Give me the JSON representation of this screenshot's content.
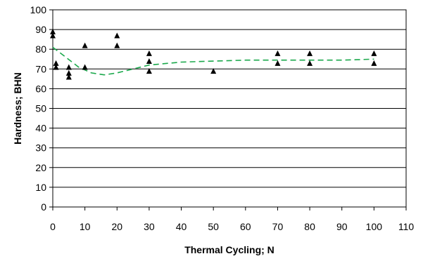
{
  "chart_data": {
    "type": "scatter",
    "xlabel": "Thermal Cycling; N",
    "ylabel": "Hardness; BHN",
    "xlim": [
      0,
      110
    ],
    "ylim": [
      0,
      100
    ],
    "x_ticks": [
      0,
      10,
      20,
      30,
      40,
      50,
      60,
      70,
      80,
      90,
      100,
      110
    ],
    "y_ticks": [
      0,
      10,
      20,
      30,
      40,
      50,
      60,
      70,
      80,
      90,
      100
    ],
    "grid": "horizontal",
    "points": [
      {
        "x": 0,
        "y": 89
      },
      {
        "x": 0,
        "y": 87
      },
      {
        "x": 1,
        "y": 73
      },
      {
        "x": 1,
        "y": 71
      },
      {
        "x": 5,
        "y": 71
      },
      {
        "x": 5,
        "y": 68
      },
      {
        "x": 5,
        "y": 66
      },
      {
        "x": 10,
        "y": 82
      },
      {
        "x": 10,
        "y": 71
      },
      {
        "x": 20,
        "y": 87
      },
      {
        "x": 20,
        "y": 82
      },
      {
        "x": 30,
        "y": 78
      },
      {
        "x": 30,
        "y": 74
      },
      {
        "x": 30,
        "y": 69
      },
      {
        "x": 50,
        "y": 69
      },
      {
        "x": 70,
        "y": 78
      },
      {
        "x": 70,
        "y": 73
      },
      {
        "x": 80,
        "y": 78
      },
      {
        "x": 80,
        "y": 73
      },
      {
        "x": 100,
        "y": 78
      },
      {
        "x": 100,
        "y": 73
      }
    ],
    "trend": {
      "style": "dashed",
      "color": "#1aa84b",
      "points": [
        {
          "x": 0,
          "y": 81
        },
        {
          "x": 4,
          "y": 76
        },
        {
          "x": 8,
          "y": 71
        },
        {
          "x": 12,
          "y": 68
        },
        {
          "x": 16,
          "y": 67
        },
        {
          "x": 20,
          "y": 68
        },
        {
          "x": 25,
          "y": 70
        },
        {
          "x": 30,
          "y": 72
        },
        {
          "x": 40,
          "y": 73.5
        },
        {
          "x": 50,
          "y": 74
        },
        {
          "x": 60,
          "y": 74.5
        },
        {
          "x": 70,
          "y": 74.5
        },
        {
          "x": 80,
          "y": 74.5
        },
        {
          "x": 90,
          "y": 74.5
        },
        {
          "x": 100,
          "y": 75
        }
      ]
    },
    "colors": {
      "marker": "#000000",
      "grid": "#000000"
    }
  }
}
